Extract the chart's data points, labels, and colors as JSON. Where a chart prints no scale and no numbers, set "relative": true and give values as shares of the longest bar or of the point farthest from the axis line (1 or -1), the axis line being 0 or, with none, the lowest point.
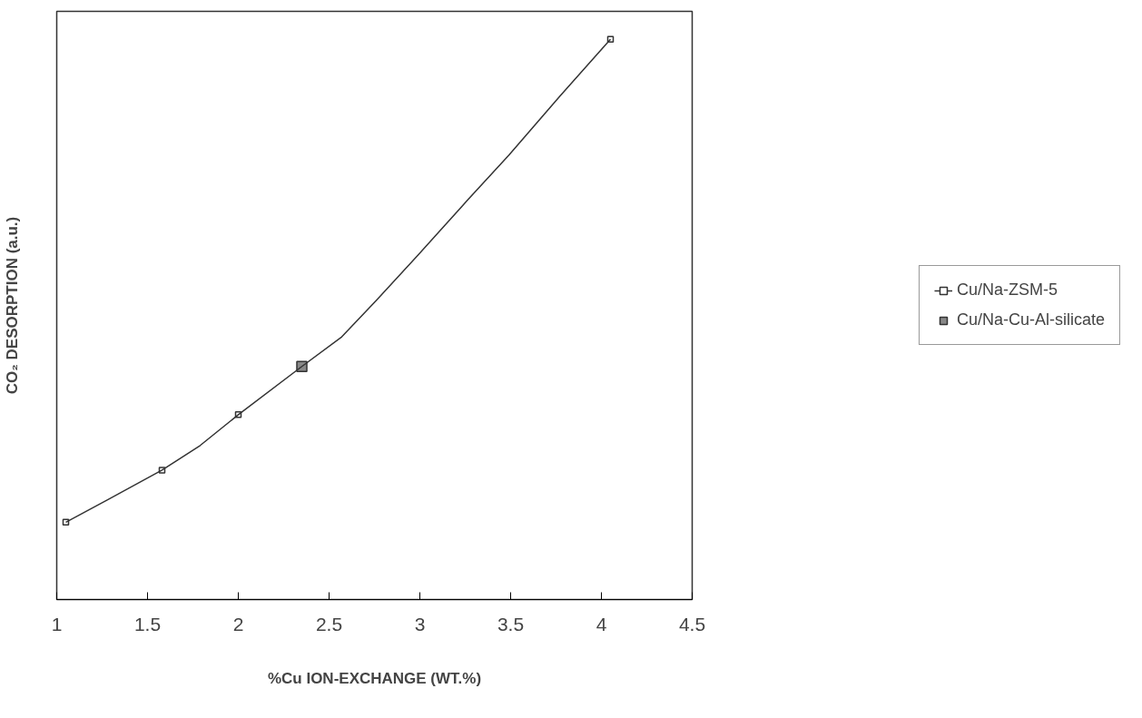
{
  "chart_data": {
    "type": "line",
    "xlabel": "%Cu ION-EXCHANGE (WT.%)",
    "ylabel": "CO₂ DESORPTION (a.u.)",
    "relative": true,
    "xlim": [
      1,
      4.5
    ],
    "xticks": [
      1,
      1.5,
      2,
      2.5,
      3,
      3.5,
      4,
      4.5
    ],
    "tick_labels": "x",
    "grid": false,
    "legend": "right",
    "marker": "square",
    "line_style": "solid",
    "series": [
      {
        "name": "Cu/Na-ZSM-5",
        "type": "scatter",
        "color": "#333333",
        "x": [
          1.05,
          1.58,
          2.0,
          4.05
        ],
        "values": [
          0.138,
          0.231,
          0.33,
          1.0
        ]
      },
      {
        "name": "Cu/Na-Cu-Al-silicate",
        "type": "scatter",
        "color": "#888888",
        "x": [
          2.35
        ],
        "values": [
          0.416
        ]
      },
      {
        "marker": "none",
        "color": "#333333",
        "x": [
          1.05,
          1.28,
          1.58,
          1.79,
          2.0,
          2.35,
          2.57,
          2.76,
          2.99,
          3.26,
          3.49,
          3.77,
          4.05
        ],
        "values": [
          0.138,
          0.178,
          0.231,
          0.275,
          0.33,
          0.416,
          0.469,
          0.534,
          0.615,
          0.712,
          0.793,
          0.898,
          1.0
        ]
      }
    ]
  }
}
